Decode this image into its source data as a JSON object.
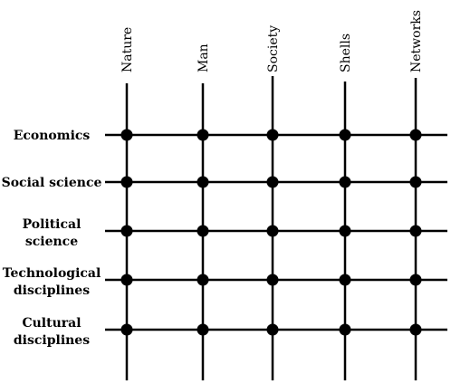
{
  "columns": [
    {
      "label": "Nature"
    },
    {
      "label": "Man"
    },
    {
      "label": "Society"
    },
    {
      "label": "Shells"
    },
    {
      "label": "Networks"
    }
  ],
  "rows": [
    {
      "lines": [
        "Economics"
      ]
    },
    {
      "lines": [
        "Social science"
      ]
    },
    {
      "lines": [
        "Political",
        "science"
      ]
    },
    {
      "lines": [
        "Technological",
        "disciplines"
      ]
    },
    {
      "lines": [
        "Cultural",
        "disciplines"
      ]
    }
  ],
  "colors": {
    "ink": "#000000",
    "background": "#ffffff"
  }
}
